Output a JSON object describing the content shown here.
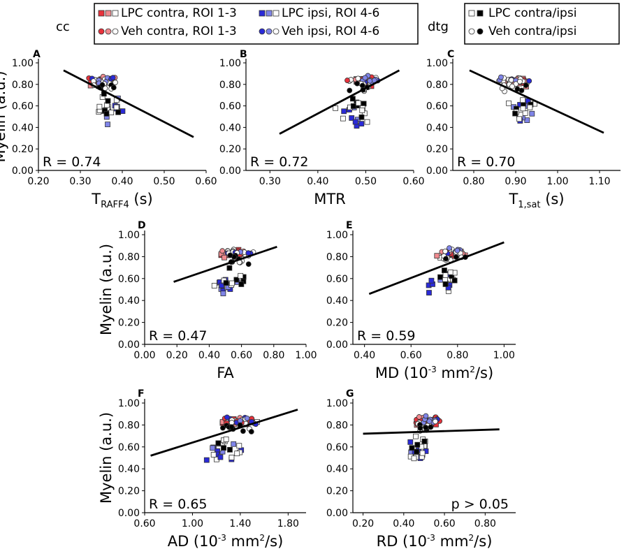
{
  "legend": {
    "cc_label": "cc",
    "dtg_label": "dtg",
    "cc_entries": [
      {
        "text": "LPC contra, ROI 1-3",
        "marker": "square",
        "colors": [
          "#e8323c",
          "#f08a8f",
          "#ffffff"
        ]
      },
      {
        "text": "LPC ipsi, ROI 4-6",
        "marker": "square",
        "colors": [
          "#2a2ad8",
          "#7f84e8",
          "#ffffff"
        ]
      },
      {
        "text": "Veh contra, ROI 1-3",
        "marker": "circle",
        "colors": [
          "#e8323c",
          "#f08a8f",
          "#ffffff"
        ]
      },
      {
        "text": "Veh ipsi, ROI 4-6",
        "marker": "circle",
        "colors": [
          "#2a2ad8",
          "#7f84e8",
          "#ffffff"
        ]
      }
    ],
    "dtg_entries": [
      {
        "text": "LPC contra/ipsi",
        "marker": "square",
        "colors": [
          "#ffffff",
          "#000000"
        ]
      },
      {
        "text": "Veh contra/ipsi",
        "marker": "circle",
        "colors": [
          "#ffffff",
          "#000000"
        ]
      }
    ]
  },
  "chart_data": [
    {
      "panel": "A",
      "type": "scatter",
      "xlabel_main": "T",
      "xlabel_sub": "RAFF4",
      "xlabel_suffix": " (s)",
      "ylabel": "Myelin (a.u.)",
      "xlim": [
        0.2,
        0.6
      ],
      "ylim": [
        0.0,
        1.0
      ],
      "xticks": [
        "0.20",
        "0.30",
        "0.40",
        "0.50",
        "0.60"
      ],
      "yticks": [
        "0.00",
        "0.20",
        "0.40",
        "0.60",
        "0.80",
        "1.00"
      ],
      "annotation": "R = 0.74",
      "fit": [
        [
          0.26,
          0.93
        ],
        [
          0.57,
          0.31
        ]
      ],
      "gen": {
        "xc": 0.355,
        "xs": 0.055,
        "slope": -2.0
      }
    },
    {
      "panel": "B",
      "type": "scatter",
      "xlabel_main": "MTR",
      "xlabel_sub": "",
      "xlabel_suffix": "",
      "ylabel": "",
      "xlim": [
        0.25,
        0.6
      ],
      "ylim": [
        0.0,
        1.0
      ],
      "xticks": [
        "0.30",
        "0.40",
        "0.50",
        "0.60"
      ],
      "yticks": [
        "0.00",
        "0.20",
        "0.40",
        "0.60",
        "0.80",
        "1.00"
      ],
      "annotation": "R = 0.72",
      "fit": [
        [
          0.32,
          0.34
        ],
        [
          0.57,
          0.93
        ]
      ],
      "gen": {
        "xc": 0.49,
        "xs": 0.05,
        "slope": 2.4
      }
    },
    {
      "panel": "C",
      "type": "scatter",
      "xlabel_main": "T",
      "xlabel_sub": "1,sat",
      "xlabel_suffix": " (s)",
      "ylabel": "",
      "xlim": [
        0.75,
        1.15
      ],
      "ylim": [
        0.0,
        1.0
      ],
      "xticks": [
        "0.80",
        "0.90",
        "1.00",
        "1.10"
      ],
      "yticks": [
        "0.00",
        "0.20",
        "0.40",
        "0.60",
        "0.80",
        "1.00"
      ],
      "annotation": "R = 0.70",
      "fit": [
        [
          0.79,
          0.93
        ],
        [
          1.11,
          0.35
        ]
      ],
      "gen": {
        "xc": 0.9,
        "xs": 0.065,
        "slope": -1.8
      }
    },
    {
      "panel": "D",
      "type": "scatter",
      "xlabel_main": "FA",
      "xlabel_sub": "",
      "xlabel_suffix": "",
      "ylabel": "Myelin (a.u.)",
      "xlim": [
        0.0,
        1.0
      ],
      "ylim": [
        0.0,
        1.0
      ],
      "xticks": [
        "0.00",
        "0.20",
        "0.40",
        "0.60",
        "0.80",
        "1.00"
      ],
      "yticks": [
        "0.00",
        "0.20",
        "0.40",
        "0.60",
        "0.80",
        "1.00"
      ],
      "annotation": "R = 0.47",
      "fit": [
        [
          0.18,
          0.57
        ],
        [
          0.82,
          0.89
        ]
      ],
      "gen": {
        "xc": 0.55,
        "xs": 0.17,
        "slope": 0.5
      }
    },
    {
      "panel": "E",
      "type": "scatter",
      "xlabel_main": "MD (10",
      "xlabel_sup1": "-3",
      "xlabel_mid": " mm",
      "xlabel_sup2": "2",
      "xlabel_suffix": "/s)",
      "ylabel": "",
      "xlim": [
        0.35,
        1.05
      ],
      "ylim": [
        0.0,
        1.0
      ],
      "xticks": [
        "0.40",
        "0.60",
        "0.80",
        "1.00"
      ],
      "yticks": [
        "0.00",
        "0.20",
        "0.40",
        "0.60",
        "0.80",
        "1.00"
      ],
      "annotation": "R = 0.59",
      "fit": [
        [
          0.42,
          0.46
        ],
        [
          1.0,
          0.93
        ]
      ],
      "gen": {
        "xc": 0.76,
        "xs": 0.12,
        "slope": 0.8
      }
    },
    {
      "panel": "F",
      "type": "scatter",
      "xlabel_main": "AD (10",
      "xlabel_sup1": "-3",
      "xlabel_mid": " mm",
      "xlabel_sup2": "2",
      "xlabel_suffix": "/s)",
      "ylabel": "Myelin (a.u.)",
      "xlim": [
        0.6,
        1.95
      ],
      "ylim": [
        0.0,
        1.0
      ],
      "xticks": [
        "0.60",
        "1.00",
        "1.40",
        "1.80"
      ],
      "yticks": [
        "0.00",
        "0.20",
        "0.40",
        "0.60",
        "0.80",
        "1.00"
      ],
      "annotation": "R = 0.65",
      "fit": [
        [
          0.65,
          0.52
        ],
        [
          1.88,
          0.94
        ]
      ],
      "gen": {
        "xc": 1.35,
        "xs": 0.3,
        "slope": 0.34
      }
    },
    {
      "panel": "G",
      "type": "scatter",
      "xlabel_main": "RD (10",
      "xlabel_sup1": "-3",
      "xlabel_mid": " mm",
      "xlabel_sup2": "2",
      "xlabel_suffix": "/s)",
      "ylabel": "",
      "xlim": [
        0.15,
        0.95
      ],
      "ylim": [
        0.0,
        1.0
      ],
      "xticks": [
        "0.20",
        "0.40",
        "0.60",
        "0.80"
      ],
      "yticks": [
        "0.00",
        "0.20",
        "0.40",
        "0.60",
        "0.80",
        "1.00"
      ],
      "annotation": "p > 0.05",
      "fit": [
        [
          0.2,
          0.72
        ],
        [
          0.87,
          0.76
        ]
      ],
      "gen": {
        "xc": 0.5,
        "xs": 0.11,
        "slope": 0.05
      }
    }
  ]
}
